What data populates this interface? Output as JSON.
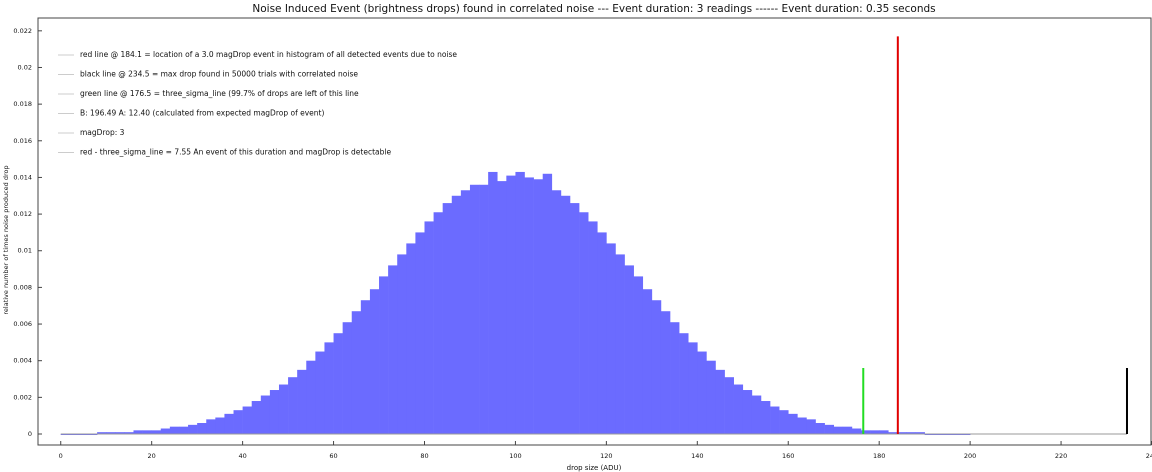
{
  "chart_data": {
    "type": "histogram",
    "title": "Noise Induced Event (brightness drops) found in correlated noise --- Event duration: 3 readings ------ Event duration: 0.35 seconds",
    "xlabel": "drop size (ADU)",
    "ylabel": "relative number of times noise produced drop",
    "bins": [
      0,
      2,
      4,
      6,
      8,
      10,
      12,
      14,
      16,
      18,
      20,
      22,
      24,
      26,
      28,
      30,
      32,
      34,
      36,
      38,
      40,
      42,
      44,
      46,
      48,
      50,
      52,
      54,
      56,
      58,
      60,
      62,
      64,
      66,
      68,
      70,
      72,
      74,
      76,
      78,
      80,
      82,
      84,
      86,
      88,
      90,
      92,
      94,
      96,
      98,
      100,
      102,
      104,
      106,
      108,
      110,
      112,
      114,
      116,
      118,
      120,
      122,
      124,
      126,
      128,
      130,
      132,
      134,
      136,
      138,
      140,
      142,
      144,
      146,
      148,
      150,
      152,
      154,
      156,
      158,
      160,
      162,
      164,
      166,
      168,
      170,
      172,
      174,
      176,
      178,
      180,
      182,
      184,
      186,
      188,
      190,
      192,
      194,
      196,
      198,
      200
    ],
    "values": [
      0,
      0,
      0,
      0,
      0.0001,
      0.0001,
      0.0001,
      0.0001,
      0.0002,
      0.0002,
      0.0002,
      0.0003,
      0.0004,
      0.0004,
      0.0005,
      0.0006,
      0.0008,
      0.0009,
      0.0011,
      0.0013,
      0.0015,
      0.0018,
      0.0021,
      0.0024,
      0.0027,
      0.0031,
      0.0035,
      0.004,
      0.0045,
      0.005,
      0.0055,
      0.0061,
      0.0067,
      0.0073,
      0.0079,
      0.0086,
      0.0092,
      0.0098,
      0.0104,
      0.011,
      0.0116,
      0.0121,
      0.0126,
      0.013,
      0.0133,
      0.0136,
      0.0136,
      0.0143,
      0.0138,
      0.0141,
      0.0143,
      0.014,
      0.0139,
      0.0142,
      0.0133,
      0.013,
      0.0126,
      0.0121,
      0.0116,
      0.011,
      0.0104,
      0.0098,
      0.0092,
      0.0086,
      0.0079,
      0.0073,
      0.0067,
      0.0061,
      0.0055,
      0.005,
      0.0045,
      0.004,
      0.0035,
      0.0031,
      0.0027,
      0.0024,
      0.0021,
      0.0018,
      0.0015,
      0.0013,
      0.0011,
      0.0009,
      0.0008,
      0.0006,
      0.0005,
      0.0004,
      0.0004,
      0.0003,
      0.0002,
      0.0002,
      0.0002,
      0.0001,
      0.0001,
      0.0001,
      0.0001,
      0,
      0,
      0,
      0,
      0
    ],
    "color": "#6b6bff",
    "vlines": [
      {
        "name": "red line",
        "x": 184.1,
        "height": 0.0217,
        "color": "#e00000"
      },
      {
        "name": "green line",
        "x": 176.5,
        "height": 0.0036,
        "color": "#22dd22"
      },
      {
        "name": "black line",
        "x": 234.5,
        "height": 0.0036,
        "color": "#000000"
      }
    ],
    "legend": [
      "red line @ 184.1 = location of a 3.0 magDrop event in histogram of all detected events due to noise",
      "black line @ 234.5 = max drop found in 50000 trials with correlated noise",
      "green line @ 176.5 = three_sigma_line (99.7% of drops are left of this line",
      "B: 196.49 A: 12.40 (calculated from expected magDrop of event)",
      "magDrop: 3",
      "red - three_sigma_line = 7.55 An event of this duration and magDrop is detectable"
    ],
    "xlim": [
      -5,
      240
    ],
    "ylim": [
      -0.0006,
      0.0227
    ],
    "xticks": [
      0,
      20,
      40,
      60,
      80,
      100,
      120,
      140,
      160,
      180,
      200,
      220,
      240
    ],
    "yticks": [
      0,
      0.002,
      0.004,
      0.006,
      0.008,
      0.01,
      0.012,
      0.014,
      0.016,
      0.018,
      0.02,
      0.022
    ]
  }
}
